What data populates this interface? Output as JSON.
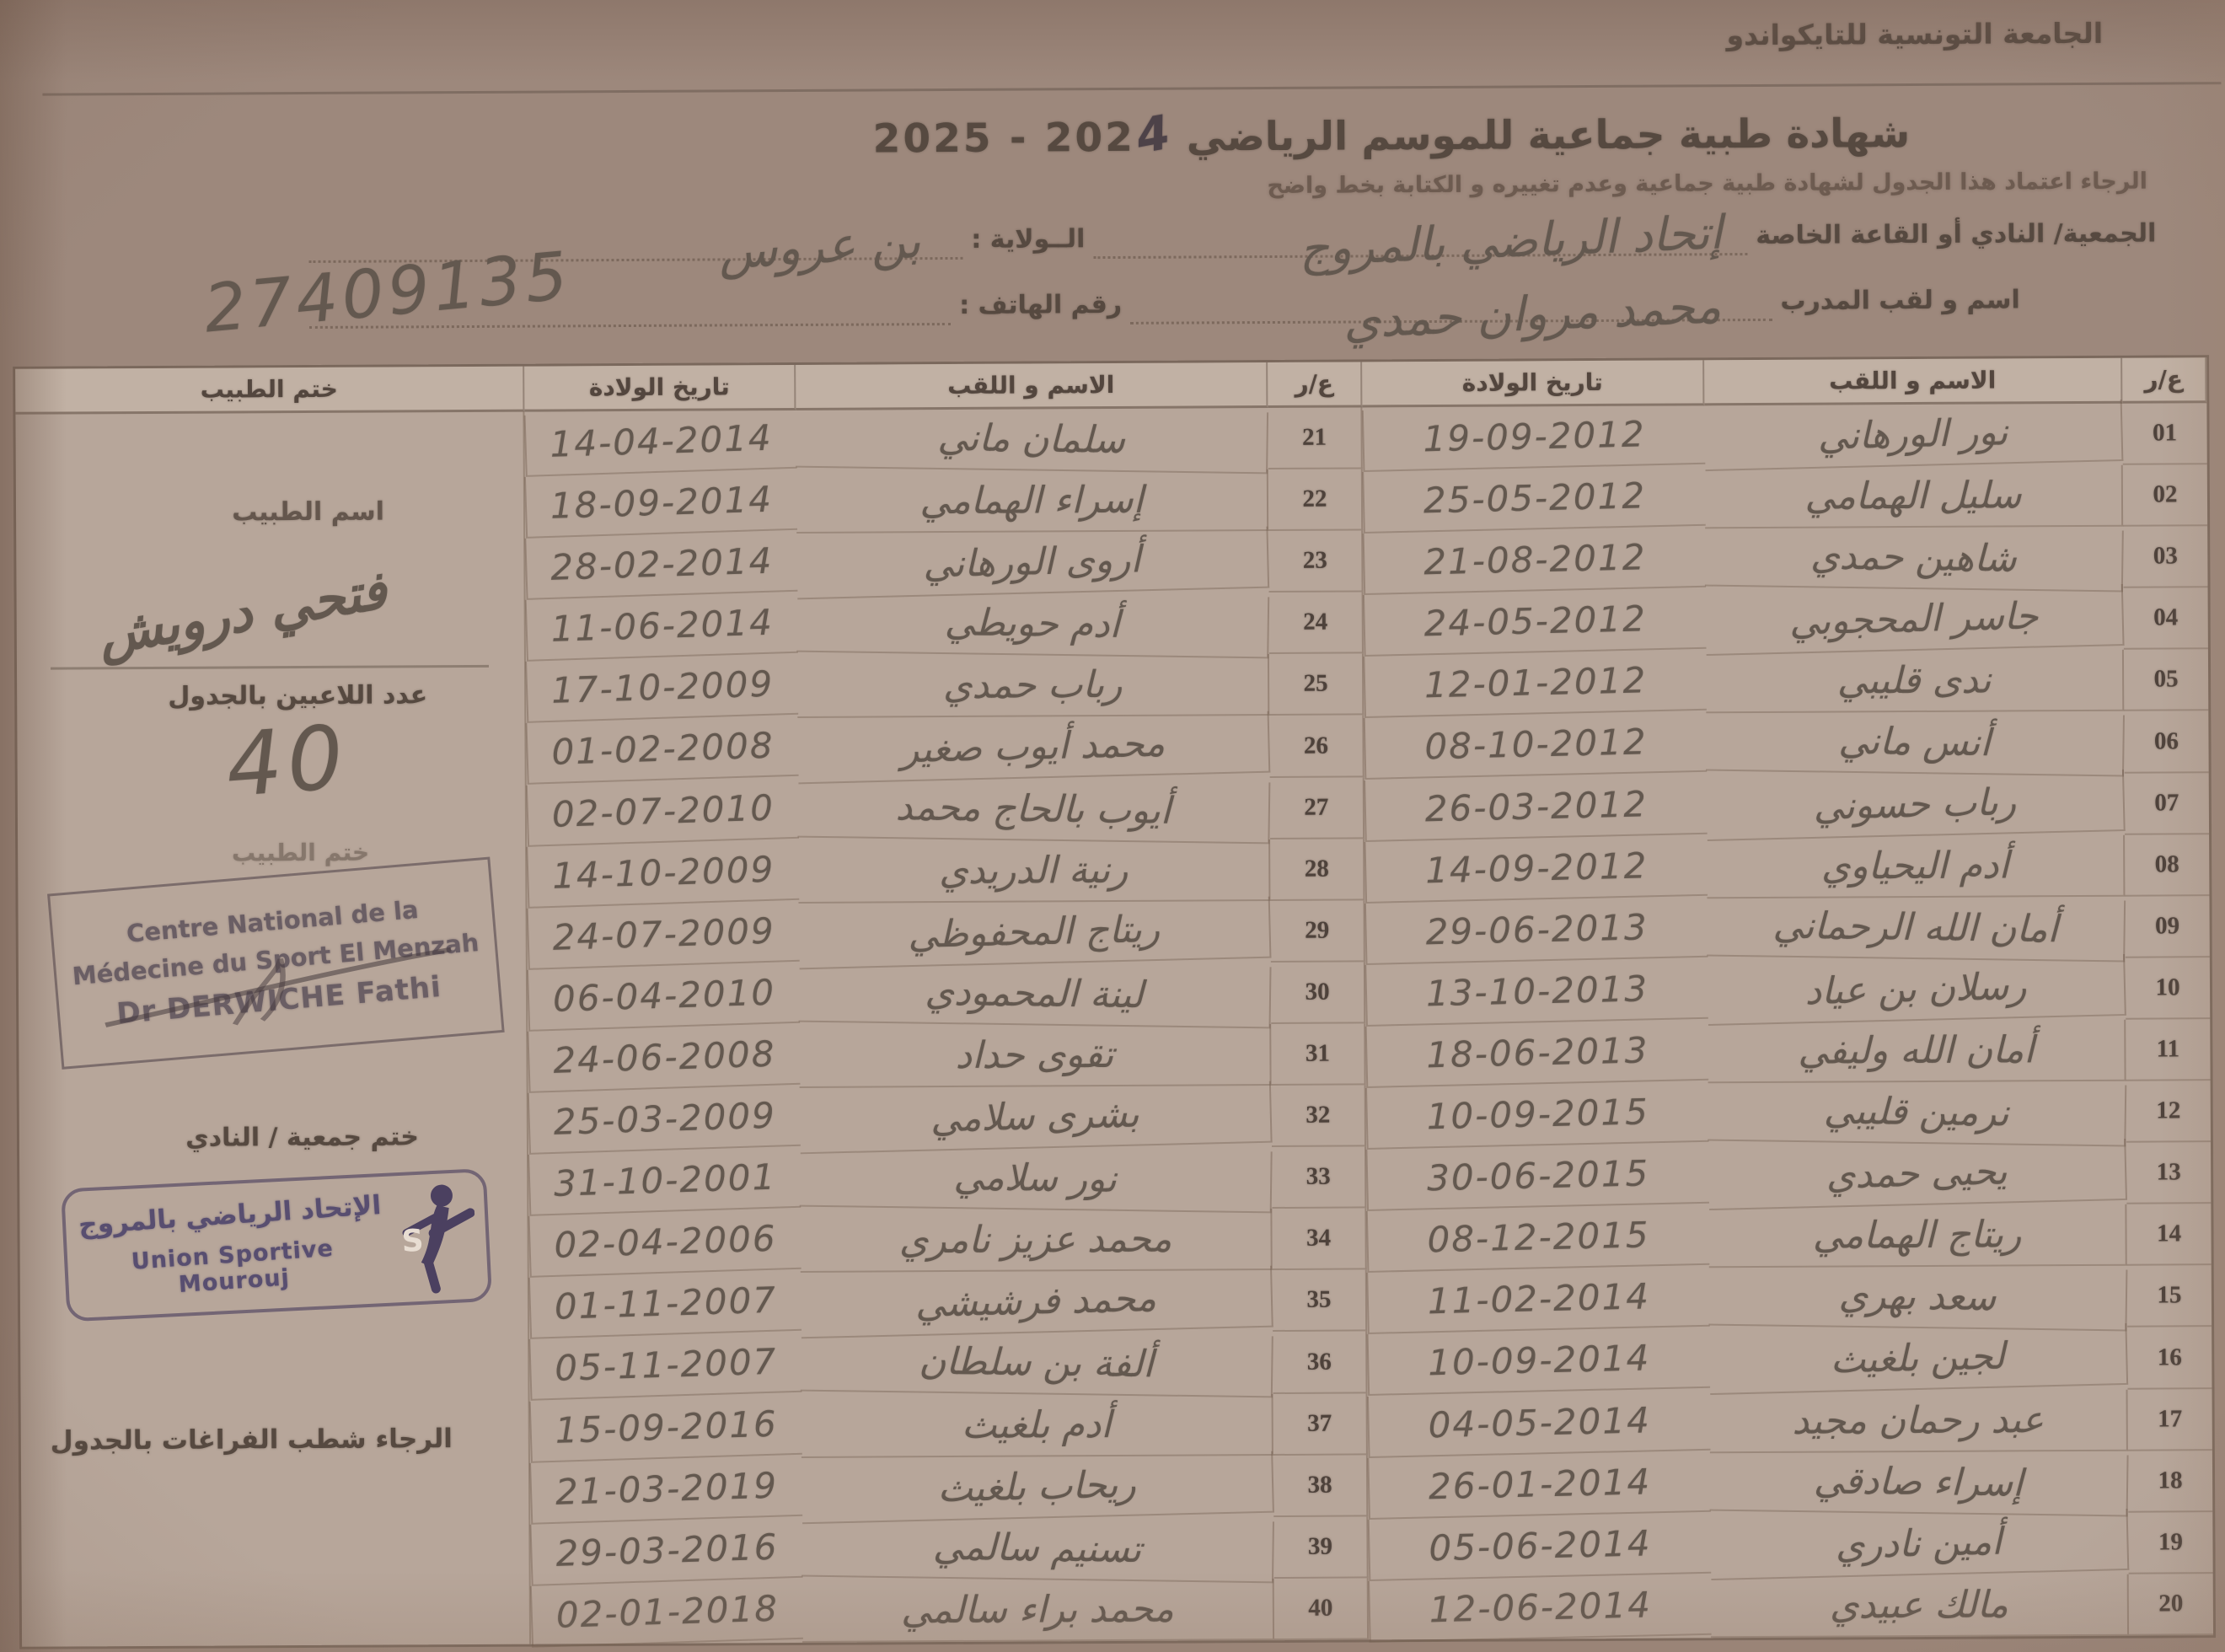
{
  "page": {
    "federation": "الجامعة التونسية للتايكواندو",
    "title": "شهادة طبية جماعية  للموسم الرياضي",
    "season_printed": "2025 - 202",
    "season_handwritten": "4",
    "subtitle": "الرجاء اعتماد هذا الجدول لشهادة طبية جماعية وعدم تغييره و الكتابة بخط واضح",
    "fields": {
      "club_label": "الجمعية/ النادي أو القاعة الخاصة",
      "club_value": "إتحاد الرياضي بالمروج",
      "state_label": "الــولاية :",
      "state_value": "بن عروس",
      "coach_label": "اسم و لقب المدرب",
      "coach_value": "محمد مروان حمدي",
      "phone_label": "رقم الهاتف :",
      "phone_value": "27409135"
    }
  },
  "table": {
    "headers": [
      "ع/ر",
      "الاسم و اللقب",
      "تاريخ الولادة",
      "ع/ر",
      "الاسم و اللقب",
      "تاريخ الولادة",
      "ختم الطبيب"
    ],
    "rows_right": [
      {
        "n": "01",
        "name": "نور الورهاني",
        "dob": "19-09-2012"
      },
      {
        "n": "02",
        "name": "سليل الهمامي",
        "dob": "25-05-2012"
      },
      {
        "n": "03",
        "name": "شاهين حمدي",
        "dob": "21-08-2012"
      },
      {
        "n": "04",
        "name": "جاسر المحجوبي",
        "dob": "24-05-2012"
      },
      {
        "n": "05",
        "name": "ندى قليبي",
        "dob": "12-01-2012"
      },
      {
        "n": "06",
        "name": "أنس ماني",
        "dob": "08-10-2012"
      },
      {
        "n": "07",
        "name": "رباب حسوني",
        "dob": "26-03-2012"
      },
      {
        "n": "08",
        "name": "أدم اليحياوي",
        "dob": "14-09-2012"
      },
      {
        "n": "09",
        "name": "أمان الله الرحماني",
        "dob": "29-06-2013"
      },
      {
        "n": "10",
        "name": "رسلان بن عياد",
        "dob": "13-10-2013"
      },
      {
        "n": "11",
        "name": "أمان الله وليفي",
        "dob": "18-06-2013"
      },
      {
        "n": "12",
        "name": "نرمين قليبي",
        "dob": "10-09-2015"
      },
      {
        "n": "13",
        "name": "يحيى حمدي",
        "dob": "30-06-2015"
      },
      {
        "n": "14",
        "name": "ريتاج الهمامي",
        "dob": "08-12-2015"
      },
      {
        "n": "15",
        "name": "سعد بهري",
        "dob": "11-02-2014"
      },
      {
        "n": "16",
        "name": "لجين بلغيث",
        "dob": "10-09-2014"
      },
      {
        "n": "17",
        "name": "عبد رحمان مجيد",
        "dob": "04-05-2014"
      },
      {
        "n": "18",
        "name": "إسراء صادقي",
        "dob": "26-01-2014"
      },
      {
        "n": "19",
        "name": "أمين نادري",
        "dob": "05-06-2014"
      },
      {
        "n": "20",
        "name": "مالك عبيدي",
        "dob": "12-06-2014"
      }
    ],
    "rows_left": [
      {
        "n": "21",
        "name": "سلمان ماني",
        "dob": "14-04-2014"
      },
      {
        "n": "22",
        "name": "إسراء الهمامي",
        "dob": "18-09-2014"
      },
      {
        "n": "23",
        "name": "أروى الورهاني",
        "dob": "28-02-2014"
      },
      {
        "n": "24",
        "name": "أدم حويطي",
        "dob": "11-06-2014"
      },
      {
        "n": "25",
        "name": "رباب حمدي",
        "dob": "17-10-2009"
      },
      {
        "n": "26",
        "name": "محمد أيوب صغير",
        "dob": "01-02-2008"
      },
      {
        "n": "27",
        "name": "أيوب بالحاج محمد",
        "dob": "02-07-2010"
      },
      {
        "n": "28",
        "name": "رنية الدريدي",
        "dob": "14-10-2009"
      },
      {
        "n": "29",
        "name": "ريتاج المحفوظي",
        "dob": "24-07-2009"
      },
      {
        "n": "30",
        "name": "لينة المحمودي",
        "dob": "06-04-2010"
      },
      {
        "n": "31",
        "name": "تقوى حداد",
        "dob": "24-06-2008"
      },
      {
        "n": "32",
        "name": "بشرى سلامي",
        "dob": "25-03-2009"
      },
      {
        "n": "33",
        "name": "نور سلامي",
        "dob": "31-10-2001"
      },
      {
        "n": "34",
        "name": "محمد عزيز نامري",
        "dob": "02-04-2006"
      },
      {
        "n": "35",
        "name": "محمد فرشيشي",
        "dob": "01-11-2007"
      },
      {
        "n": "36",
        "name": "ألفة بن سلطان",
        "dob": "05-11-2007"
      },
      {
        "n": "37",
        "name": "أدم بلغيث",
        "dob": "15-09-2016"
      },
      {
        "n": "38",
        "name": "ريحاب بلغيث",
        "dob": "21-03-2019"
      },
      {
        "n": "39",
        "name": "تسنيم سالمي",
        "dob": "29-03-2016"
      },
      {
        "n": "40",
        "name": "محمد براء سالمي",
        "dob": "02-01-2018"
      }
    ]
  },
  "side": {
    "doctor_name_label": "اسم الطبيب",
    "doctor_signature": "فتحي درويش",
    "players_count_label": "عدد اللاعبين بالجدول",
    "players_count_value": "40",
    "doctor_stamp_label": "ختم الطبيب",
    "doctor_stamp_line1": "Centre National de la",
    "doctor_stamp_line2": "Médecine du Sport El Menzah",
    "doctor_stamp_line3": "Dr DERWICHE Fathi",
    "club_stamp_label": "ختم جمعية / النادي",
    "club_stamp_arabic": "الإتحاد الرياضي بالمروج",
    "club_stamp_latin": "Union Sportive Mourouj",
    "note": "الرجاء شطب الفراغات بالجدول"
  }
}
